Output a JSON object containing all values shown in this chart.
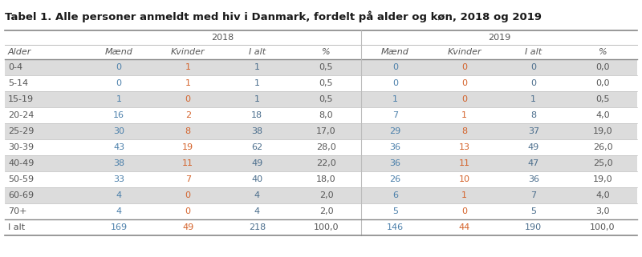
{
  "title": "Tabel 1. Alle personer anmeldt med hiv i Danmark, fordelt på alder og køn, 2018 og 2019",
  "col_headers_row2": [
    "Alder",
    "Mænd",
    "Kvinder",
    "I alt",
    "%",
    "Mænd",
    "Kvinder",
    "I alt",
    "%"
  ],
  "rows": [
    [
      "0-4",
      "0",
      "1",
      "1",
      "0,5",
      "0",
      "0",
      "0",
      "0,0"
    ],
    [
      "5-14",
      "0",
      "1",
      "1",
      "0,5",
      "0",
      "0",
      "0",
      "0,0"
    ],
    [
      "15-19",
      "1",
      "0",
      "1",
      "0,5",
      "1",
      "0",
      "1",
      "0,5"
    ],
    [
      "20-24",
      "16",
      "2",
      "18",
      "8,0",
      "7",
      "1",
      "8",
      "4,0"
    ],
    [
      "25-29",
      "30",
      "8",
      "38",
      "17,0",
      "29",
      "8",
      "37",
      "19,0"
    ],
    [
      "30-39",
      "43",
      "19",
      "62",
      "28,0",
      "36",
      "13",
      "49",
      "26,0"
    ],
    [
      "40-49",
      "38",
      "11",
      "49",
      "22,0",
      "36",
      "11",
      "47",
      "25,0"
    ],
    [
      "50-59",
      "33",
      "7",
      "40",
      "18,0",
      "26",
      "10",
      "36",
      "19,0"
    ],
    [
      "60-69",
      "4",
      "0",
      "4",
      "2,0",
      "6",
      "1",
      "7",
      "4,0"
    ],
    [
      "70+",
      "4",
      "0",
      "4",
      "2,0",
      "5",
      "0",
      "5",
      "3,0"
    ]
  ],
  "total_row": [
    "I alt",
    "169",
    "49",
    "218",
    "100,0",
    "146",
    "44",
    "190",
    "100,0"
  ],
  "col_widths_rel": [
    1.15,
    1.0,
    1.0,
    1.0,
    1.0,
    1.0,
    1.0,
    1.0,
    1.0
  ],
  "row_bg_even": "#dcdcdc",
  "row_bg_odd": "#ffffff",
  "title_fontsize": 9.5,
  "header_fontsize": 8.0,
  "cell_fontsize": 8.0,
  "kvinder_color": "#d4622a",
  "maend_color": "#4a7faa",
  "ialt_color": "#4a6d8c",
  "normal_color": "#555555",
  "line_color_strong": "#888888",
  "line_color_weak": "#bbbbbb"
}
